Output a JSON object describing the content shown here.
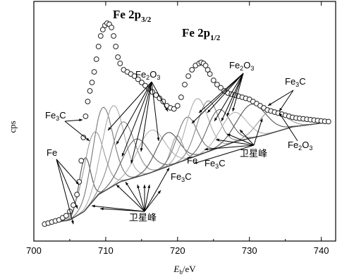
{
  "chart_data": {
    "type": "scatter",
    "xlabel": "E",
    "xlabel_sub": "b",
    "xlabel_unit": "/eV",
    "ylabel": "cps",
    "xlim": [
      700,
      742
    ],
    "xticks": [
      700,
      710,
      720,
      730,
      740
    ],
    "ylim": [
      0,
      1
    ],
    "yticks_shown": false,
    "grid": false,
    "peak_labels": [
      {
        "main": "Fe 2p",
        "sub": "3/2"
      },
      {
        "main": "Fe 2p",
        "sub": "1/2"
      }
    ],
    "annotations": [
      {
        "base": "Fe",
        "sub": "3",
        "tail": "C"
      },
      {
        "base": "Fe",
        "sub": "",
        "tail": ""
      },
      {
        "base": "Fe",
        "sub": "2",
        "tail": "O",
        "sub2": "3"
      },
      {
        "base": "Fe",
        "sub": "2",
        "tail": "O",
        "sub2": "3"
      },
      {
        "base": "Fe",
        "sub": "3",
        "tail": "C"
      },
      {
        "base": "Fe",
        "sub": "",
        "tail": ""
      },
      {
        "base": "Fe",
        "sub": "3",
        "tail": "C"
      },
      {
        "base": "Fe",
        "sub": "3",
        "tail": "C"
      },
      {
        "base": "Fe",
        "sub": "2",
        "tail": "O",
        "sub2": "3"
      },
      {
        "base": "卫星峰",
        "sub": "",
        "tail": ""
      },
      {
        "base": "卫星峰",
        "sub": "",
        "tail": ""
      }
    ],
    "series": [
      {
        "kind": "measured",
        "marker": "open-circle",
        "x": [
          701.5,
          702,
          702.5,
          703,
          703.5,
          704,
          704.5,
          705,
          705.5,
          706,
          706.3,
          706.6,
          706.9,
          707.2,
          707.5,
          707.8,
          708.1,
          708.4,
          708.7,
          709,
          709.3,
          709.6,
          709.9,
          710.2,
          710.5,
          710.8,
          711.1,
          711.4,
          711.7,
          712,
          712.5,
          713,
          713.5,
          714,
          714.5,
          715,
          715.5,
          716,
          716.5,
          717,
          717.5,
          718,
          718.5,
          719,
          719.5,
          720,
          720.5,
          721,
          721.5,
          722,
          722.5,
          723,
          723.3,
          723.6,
          723.9,
          724.2,
          724.5,
          725,
          725.5,
          726,
          726.5,
          727,
          727.5,
          728,
          728.5,
          729,
          729.5,
          730,
          730.5,
          731,
          731.5,
          732,
          732.5,
          733,
          733.5,
          734,
          734.5,
          735,
          735.5,
          736,
          736.5,
          737,
          737.5,
          738,
          738.5,
          739,
          739.5,
          740,
          740.5,
          741
        ],
        "y": [
          0.04,
          0.045,
          0.05,
          0.055,
          0.06,
          0.07,
          0.08,
          0.1,
          0.13,
          0.18,
          0.24,
          0.34,
          0.45,
          0.55,
          0.62,
          0.67,
          0.71,
          0.76,
          0.82,
          0.88,
          0.93,
          0.96,
          0.98,
          0.99,
          0.985,
          0.97,
          0.93,
          0.88,
          0.83,
          0.8,
          0.77,
          0.76,
          0.75,
          0.74,
          0.725,
          0.71,
          0.695,
          0.68,
          0.665,
          0.65,
          0.635,
          0.62,
          0.6,
          0.59,
          0.585,
          0.6,
          0.64,
          0.7,
          0.74,
          0.77,
          0.79,
          0.8,
          0.805,
          0.8,
          0.79,
          0.77,
          0.75,
          0.72,
          0.7,
          0.685,
          0.67,
          0.66,
          0.655,
          0.65,
          0.645,
          0.64,
          0.635,
          0.63,
          0.62,
          0.61,
          0.6,
          0.59,
          0.58,
          0.575,
          0.57,
          0.565,
          0.56,
          0.555,
          0.55,
          0.545,
          0.542,
          0.54,
          0.538,
          0.536,
          0.534,
          0.532,
          0.53,
          0.528,
          0.526,
          0.525
        ]
      },
      {
        "kind": "background",
        "x": [
          701.5,
          705,
          707,
          709,
          712,
          716,
          720,
          724,
          728,
          732,
          736,
          740.5
        ],
        "y": [
          0.04,
          0.06,
          0.1,
          0.18,
          0.24,
          0.28,
          0.33,
          0.38,
          0.43,
          0.46,
          0.5,
          0.52
        ]
      },
      {
        "kind": "component",
        "name": "Fe",
        "center": 707.1,
        "height": 0.25,
        "width": 0.8
      },
      {
        "kind": "component",
        "name": "Fe3C",
        "center": 708.3,
        "height": 0.32,
        "width": 1.4
      },
      {
        "kind": "component",
        "name": "Fe2O3",
        "center": 709.6,
        "height": 0.4,
        "width": 1.4
      },
      {
        "kind": "component",
        "name": "Fe2O3",
        "center": 711.0,
        "height": 0.38,
        "width": 1.5
      },
      {
        "kind": "component",
        "name": "Fe2O3",
        "center": 712.4,
        "height": 0.28,
        "width": 1.6
      },
      {
        "kind": "component",
        "name": "satellite",
        "center": 714.2,
        "height": 0.18,
        "width": 1.8
      },
      {
        "kind": "component",
        "name": "satellite",
        "center": 716.3,
        "height": 0.2,
        "width": 1.9
      },
      {
        "kind": "component",
        "name": "satellite",
        "center": 718.6,
        "height": 0.16,
        "width": 1.6
      },
      {
        "kind": "component",
        "name": "Fe",
        "center": 719.9,
        "height": 0.13,
        "width": 0.8
      },
      {
        "kind": "component",
        "name": "Fe3C",
        "center": 721.3,
        "height": 0.2,
        "width": 1.4
      },
      {
        "kind": "component",
        "name": "Fe2O3",
        "center": 722.7,
        "height": 0.27,
        "width": 1.5
      },
      {
        "kind": "component",
        "name": "Fe2O3",
        "center": 724.2,
        "height": 0.24,
        "width": 1.5
      },
      {
        "kind": "component",
        "name": "Fe2O3",
        "center": 725.7,
        "height": 0.18,
        "width": 1.6
      },
      {
        "kind": "component",
        "name": "satellite",
        "center": 727.8,
        "height": 0.14,
        "width": 1.8
      },
      {
        "kind": "component",
        "name": "satellite",
        "center": 730.3,
        "height": 0.16,
        "width": 2.0
      },
      {
        "kind": "component",
        "name": "satellite",
        "center": 733.0,
        "height": 0.11,
        "width": 1.8
      }
    ]
  }
}
